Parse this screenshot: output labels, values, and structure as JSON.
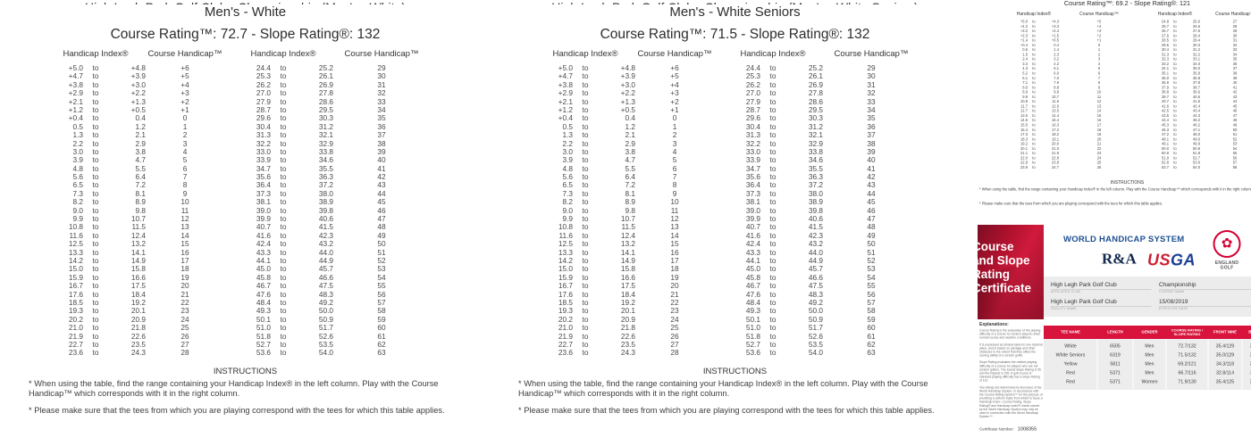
{
  "strings": {
    "to_word": "to",
    "instructions_title": "INSTRUCTIONS",
    "instruction_1": "* When using the table, find the range containing your Handicap Index® in the left column. Play with the Course Handicap™ which corresponds with it in the right column.",
    "instruction_2": "* Please make sure that the tees from which you are playing correspond with the tees for which this table applies."
  },
  "tables": {
    "col_headers": [
      "Handicap Index®",
      "Course Handicap™",
      "Handicap Index®",
      "Course Handicap™"
    ],
    "white": {
      "clipped_title": "High Legh Park Golf Club - Championship (Men's - White)",
      "tee": "Men's - White",
      "rating_line": "Course Rating™: 72.7  - Slope Rating®: 132"
    },
    "white_seniors": {
      "clipped_title": "High Legh Park Golf Club - Championship (Men's - White Seniors)",
      "tee": "Men's - White  Seniors",
      "rating_line": "Course Rating™: 71.5  - Slope Rating®: 132"
    },
    "shared_rows": {
      "left": [
        [
          "+5.0",
          "+4.8",
          "+6"
        ],
        [
          "+4.7",
          "+3.9",
          "+5"
        ],
        [
          "+3.8",
          "+3.0",
          "+4"
        ],
        [
          "+2.9",
          "+2.2",
          "+3"
        ],
        [
          "+2.1",
          "+1.3",
          "+2"
        ],
        [
          "+1.2",
          "+0.5",
          "+1"
        ],
        [
          "+0.4",
          "0.4",
          "0"
        ],
        [
          "0.5",
          "1.2",
          "1"
        ],
        [
          "1.3",
          "2.1",
          "2"
        ],
        [
          "2.2",
          "2.9",
          "3"
        ],
        [
          "3.0",
          "3.8",
          "4"
        ],
        [
          "3.9",
          "4.7",
          "5"
        ],
        [
          "4.8",
          "5.5",
          "6"
        ],
        [
          "5.6",
          "6.4",
          "7"
        ],
        [
          "6.5",
          "7.2",
          "8"
        ],
        [
          "7.3",
          "8.1",
          "9"
        ],
        [
          "8.2",
          "8.9",
          "10"
        ],
        [
          "9.0",
          "9.8",
          "11"
        ],
        [
          "9.9",
          "10.7",
          "12"
        ],
        [
          "10.8",
          "11.5",
          "13"
        ],
        [
          "11.6",
          "12.4",
          "14"
        ],
        [
          "12.5",
          "13.2",
          "15"
        ],
        [
          "13.3",
          "14.1",
          "16"
        ],
        [
          "14.2",
          "14.9",
          "17"
        ],
        [
          "15.0",
          "15.8",
          "18"
        ],
        [
          "15.9",
          "16.6",
          "19"
        ],
        [
          "16.7",
          "17.5",
          "20"
        ],
        [
          "17.6",
          "18.4",
          "21"
        ],
        [
          "18.5",
          "19.2",
          "22"
        ],
        [
          "19.3",
          "20.1",
          "23"
        ],
        [
          "20.2",
          "20.9",
          "24"
        ],
        [
          "21.0",
          "21.8",
          "25"
        ],
        [
          "21.9",
          "22.6",
          "26"
        ],
        [
          "22.7",
          "23.5",
          "27"
        ],
        [
          "23.6",
          "24.3",
          "28"
        ]
      ],
      "right": [
        [
          "24.4",
          "25.2",
          "29"
        ],
        [
          "25.3",
          "26.1",
          "30"
        ],
        [
          "26.2",
          "26.9",
          "31"
        ],
        [
          "27.0",
          "27.8",
          "32"
        ],
        [
          "27.9",
          "28.6",
          "33"
        ],
        [
          "28.7",
          "29.5",
          "34"
        ],
        [
          "29.6",
          "30.3",
          "35"
        ],
        [
          "30.4",
          "31.2",
          "36"
        ],
        [
          "31.3",
          "32.1",
          "37"
        ],
        [
          "32.2",
          "32.9",
          "38"
        ],
        [
          "33.0",
          "33.8",
          "39"
        ],
        [
          "33.9",
          "34.6",
          "40"
        ],
        [
          "34.7",
          "35.5",
          "41"
        ],
        [
          "35.6",
          "36.3",
          "42"
        ],
        [
          "36.4",
          "37.2",
          "43"
        ],
        [
          "37.3",
          "38.0",
          "44"
        ],
        [
          "38.1",
          "38.9",
          "45"
        ],
        [
          "39.0",
          "39.8",
          "46"
        ],
        [
          "39.9",
          "40.6",
          "47"
        ],
        [
          "40.7",
          "41.5",
          "48"
        ],
        [
          "41.6",
          "42.3",
          "49"
        ],
        [
          "42.4",
          "43.2",
          "50"
        ],
        [
          "43.3",
          "44.0",
          "51"
        ],
        [
          "44.1",
          "44.9",
          "52"
        ],
        [
          "45.0",
          "45.7",
          "53"
        ],
        [
          "45.8",
          "46.6",
          "54"
        ],
        [
          "46.7",
          "47.5",
          "55"
        ],
        [
          "47.6",
          "48.3",
          "56"
        ],
        [
          "48.4",
          "49.2",
          "57"
        ],
        [
          "49.3",
          "50.0",
          "58"
        ],
        [
          "50.1",
          "50.9",
          "59"
        ],
        [
          "51.0",
          "51.7",
          "60"
        ],
        [
          "51.8",
          "52.6",
          "61"
        ],
        [
          "52.7",
          "53.5",
          "62"
        ],
        [
          "53.6",
          "54.0",
          "63"
        ]
      ]
    },
    "yellow_mini": {
      "rating_line": "Course Rating™: 69.2  - Slope Rating®: 121",
      "left": [
        [
          "+5.0",
          "+4.3",
          "+5"
        ],
        [
          "+4.2",
          "+3.3",
          "+4"
        ],
        [
          "+3.2",
          "+2.4",
          "+3"
        ],
        [
          "+2.3",
          "+1.5",
          "+2"
        ],
        [
          "+1.4",
          "+0.5",
          "+1"
        ],
        [
          "+0.4",
          "0.4",
          "0"
        ],
        [
          "0.5",
          "1.4",
          "1"
        ],
        [
          "1.5",
          "2.3",
          "2"
        ],
        [
          "2.4",
          "3.2",
          "3"
        ],
        [
          "3.3",
          "4.2",
          "4"
        ],
        [
          "4.3",
          "5.1",
          "5"
        ],
        [
          "5.2",
          "6.0",
          "6"
        ],
        [
          "6.1",
          "7.0",
          "7"
        ],
        [
          "7.1",
          "7.9",
          "8"
        ],
        [
          "8.0",
          "8.8",
          "9"
        ],
        [
          "8.9",
          "9.8",
          "10"
        ],
        [
          "9.9",
          "10.7",
          "11"
        ],
        [
          "10.8",
          "11.6",
          "12"
        ],
        [
          "11.7",
          "12.6",
          "13"
        ],
        [
          "12.7",
          "13.5",
          "14"
        ],
        [
          "13.6",
          "14.4",
          "15"
        ],
        [
          "14.5",
          "15.4",
          "16"
        ],
        [
          "15.5",
          "16.3",
          "17"
        ],
        [
          "16.4",
          "17.2",
          "18"
        ],
        [
          "17.3",
          "18.2",
          "19"
        ],
        [
          "18.3",
          "19.1",
          "20"
        ],
        [
          "19.2",
          "20.0",
          "21"
        ],
        [
          "20.1",
          "21.0",
          "22"
        ],
        [
          "21.1",
          "21.9",
          "23"
        ],
        [
          "22.0",
          "22.8",
          "24"
        ],
        [
          "22.9",
          "23.8",
          "25"
        ],
        [
          "23.9",
          "24.7",
          "26"
        ]
      ],
      "right": [
        [
          "24.8",
          "25.6",
          "27"
        ],
        [
          "25.7",
          "26.6",
          "28"
        ],
        [
          "26.7",
          "27.5",
          "29"
        ],
        [
          "27.6",
          "28.4",
          "30"
        ],
        [
          "28.5",
          "29.4",
          "31"
        ],
        [
          "29.5",
          "30.3",
          "32"
        ],
        [
          "30.4",
          "31.2",
          "33"
        ],
        [
          "31.3",
          "32.2",
          "34"
        ],
        [
          "32.3",
          "33.1",
          "35"
        ],
        [
          "33.2",
          "34.0",
          "36"
        ],
        [
          "34.1",
          "35.0",
          "37"
        ],
        [
          "35.1",
          "35.9",
          "38"
        ],
        [
          "36.0",
          "36.8",
          "39"
        ],
        [
          "36.9",
          "37.8",
          "40"
        ],
        [
          "37.9",
          "38.7",
          "41"
        ],
        [
          "38.8",
          "39.6",
          "42"
        ],
        [
          "39.7",
          "40.6",
          "43"
        ],
        [
          "40.7",
          "41.5",
          "44"
        ],
        [
          "41.6",
          "42.4",
          "45"
        ],
        [
          "42.5",
          "43.4",
          "46"
        ],
        [
          "43.5",
          "44.3",
          "47"
        ],
        [
          "44.4",
          "45.2",
          "48"
        ],
        [
          "45.3",
          "46.2",
          "49"
        ],
        [
          "46.3",
          "47.1",
          "50"
        ],
        [
          "47.2",
          "48.0",
          "51"
        ],
        [
          "48.1",
          "49.0",
          "52"
        ],
        [
          "49.1",
          "49.9",
          "53"
        ],
        [
          "50.0",
          "50.8",
          "54"
        ],
        [
          "50.9",
          "51.8",
          "55"
        ],
        [
          "51.9",
          "52.7",
          "56"
        ],
        [
          "52.8",
          "53.6",
          "57"
        ],
        [
          "53.7",
          "54.0",
          "58"
        ]
      ]
    }
  },
  "certificate": {
    "red_panel_lines": [
      "Course",
      "and Slope",
      "Rating",
      "Certificate"
    ],
    "whs_title": "WORLD HANDICAP SYSTEM",
    "ra_logo": "R&A",
    "usga_logo_us": "US",
    "usga_logo_ga": "GA",
    "england_golf_rose": "✿",
    "england_golf_line1": "ENGLAND",
    "england_golf_line2": "GOLF",
    "fields": {
      "affiliated_club": "High Legh Park Golf Club",
      "affiliated_club_label": "AFFILIATED CLUB",
      "course_name": "Championship",
      "course_name_label": "COURSE NAME",
      "facility_name": "High Legh Park Golf Club",
      "facility_name_label": "FACILITY NAME",
      "effective_date": "15/08/2019",
      "effective_date_label": "EFFECTIVE DATE"
    },
    "explanations_title": "Explanations:",
    "explanations": [
      "Course Rating is the evaluation of the playing difficulty of a course for scratch players under normal course and weather conditions.",
      "It is expressed as strokes taken to one decimal place, and is based on yardage and other obstacles to the extent that they affect the scoring ability of a scratch golfer.",
      "Slope Rating evaluates the relative playing difficulty of a course for players who are not scratch golfers. The lowest Slope Rating is 55 and the highest is 155. A golf course of standard playing difficulty has a Slope Rating of 113.",
      "Tee ratings are determined by licensees of the World Handicap System, in accordance with the Course Rating System™ for the purpose of providing a uniform basis from which to issue a Handicap Index. Course Rating, Slope Rating® and Handicap Index® marks owned by the World Handicap System may only be used in connection with the World Handicap System™."
    ],
    "cert_number_label": "Certificate Number:",
    "cert_number": "1008355",
    "table": {
      "headers": [
        "TEE NAME",
        "LENGTH",
        "GENDER",
        "COURSE RATING / SLOPE RATING",
        "FRONT NINE",
        "BACK NINE"
      ],
      "rows": [
        [
          "White",
          "6505",
          "Men",
          "72.7/132",
          "35.4/129",
          "37.3/135"
        ],
        [
          "White Seniors",
          "6319",
          "Men",
          "71.5/132",
          "35.0/129",
          "36.5/135"
        ],
        [
          "Yellow",
          "5811",
          "Men",
          "69.2/121",
          "34.3/118",
          "34.9/124"
        ],
        [
          "Red",
          "5371",
          "Men",
          "66.7/116",
          "32.8/114",
          "33.9/118"
        ],
        [
          "Red",
          "5371",
          "Women",
          "71.9/130",
          "35.4/125",
          "36.5/134"
        ]
      ]
    },
    "colors": {
      "header_red": "#d8143c",
      "whs_blue": "#1d4f91",
      "ra_navy": "#10284b",
      "usga_red": "#cc2133",
      "usga_blue": "#1c3f94",
      "england_golf_red": "#d50032"
    }
  }
}
